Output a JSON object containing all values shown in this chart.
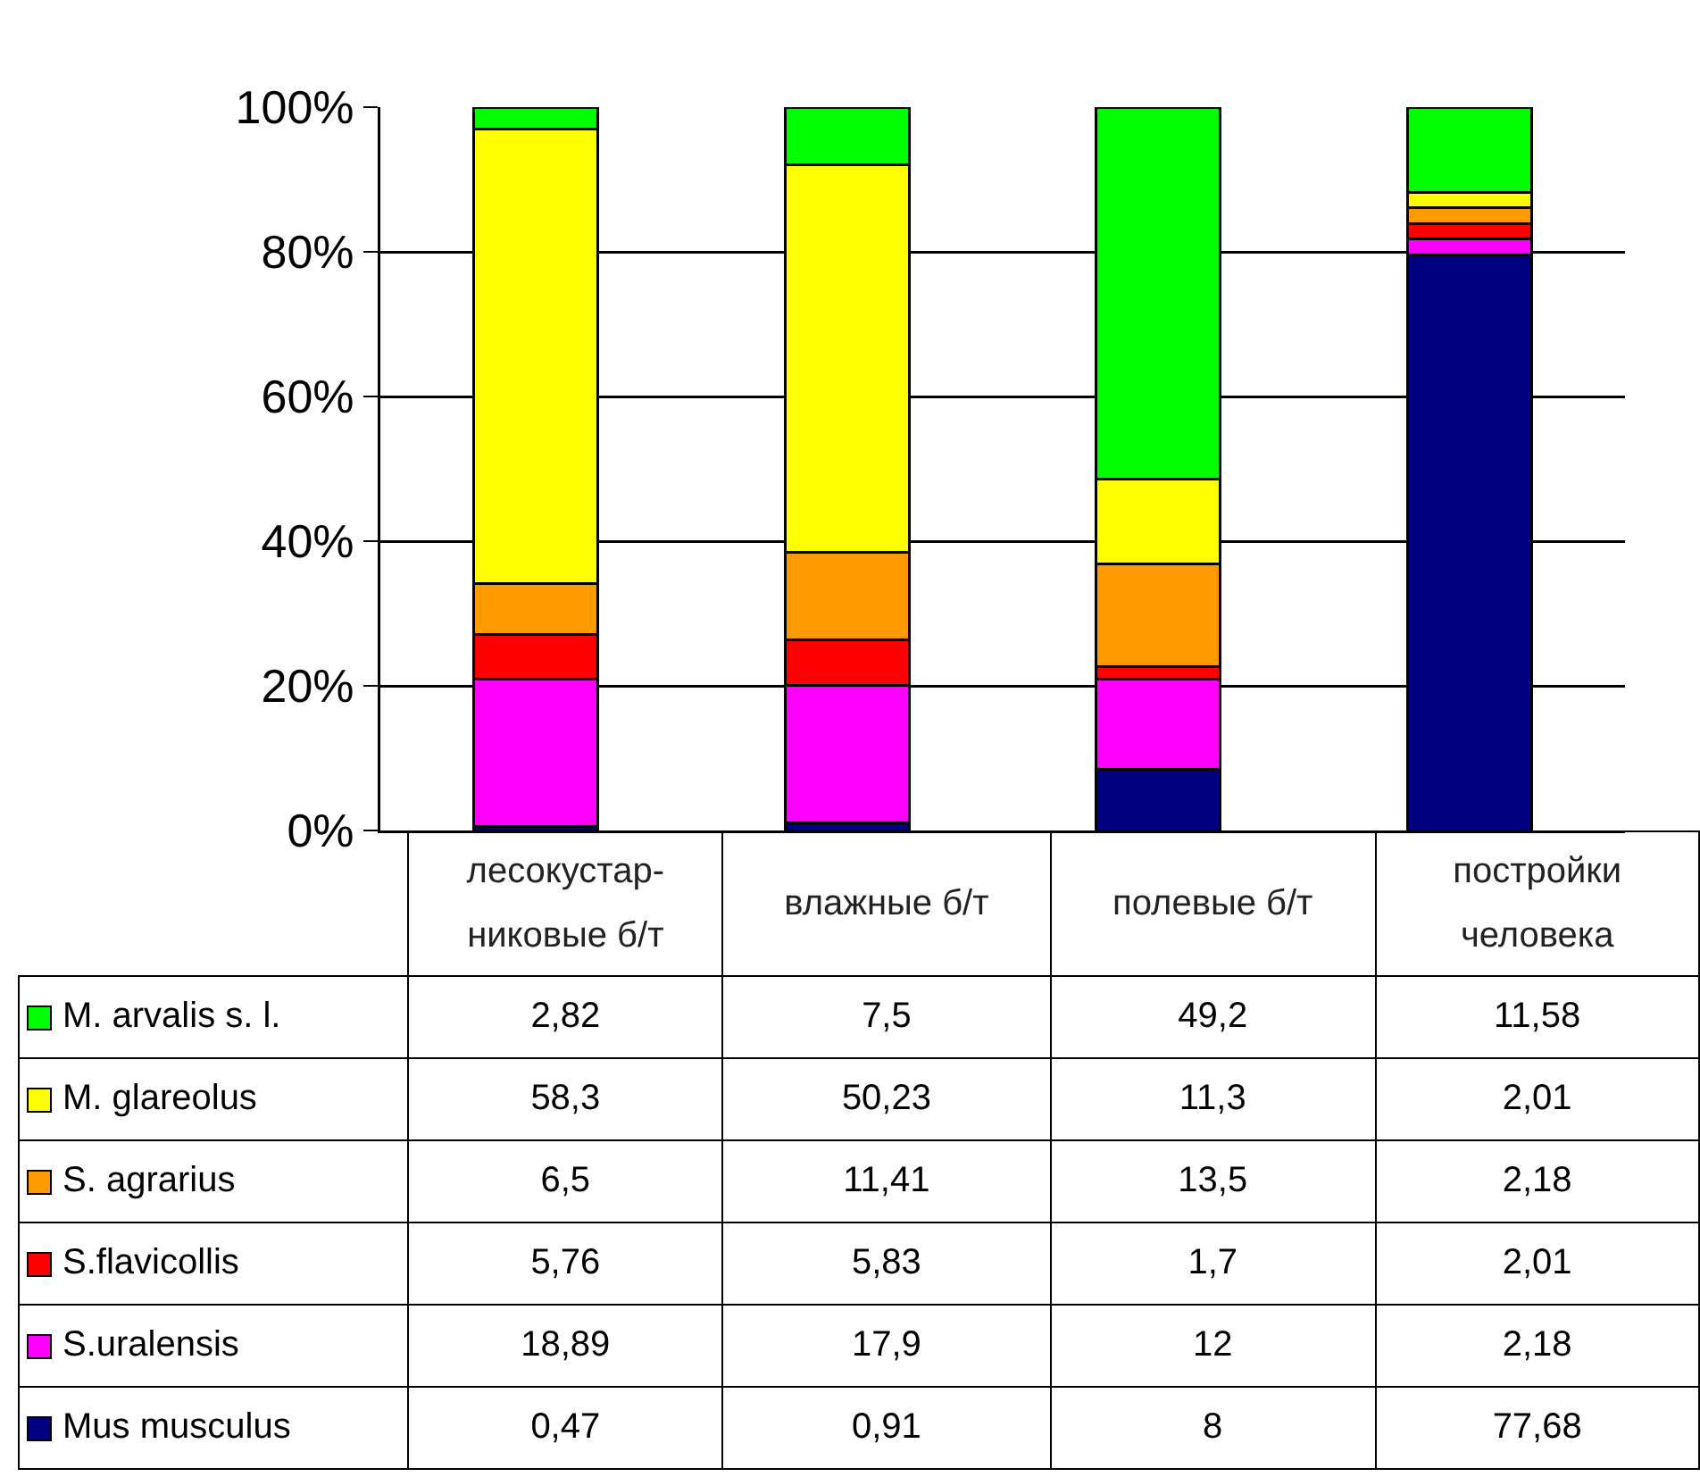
{
  "chart_data": {
    "type": "bar",
    "stacked": true,
    "categories": [
      "лесокустар-никовые б/т",
      "влажные б/т",
      "полевые б/т",
      "постройки человека"
    ],
    "series": [
      {
        "name": "Mus musculus",
        "color": "#000080",
        "values": [
          0.5,
          1.0,
          8.4,
          79.6
        ]
      },
      {
        "name": "S.uralensis",
        "color": "#ff00ff",
        "values": [
          20.4,
          19.1,
          12.5,
          2.2
        ]
      },
      {
        "name": "S.flavicollis",
        "color": "#ff0000",
        "values": [
          6.2,
          6.2,
          1.8,
          2.1
        ]
      },
      {
        "name": "S. agrarius",
        "color": "#ff9900",
        "values": [
          7.0,
          12.2,
          14.1,
          2.2
        ]
      },
      {
        "name": "M. glareolus",
        "color": "#ffff00",
        "values": [
          62.9,
          53.5,
          11.8,
          2.1
        ]
      },
      {
        "name": "M. arvalis s. l.",
        "color": "#00ff00",
        "values": [
          3.0,
          8.0,
          51.4,
          11.8
        ]
      }
    ],
    "annotations": [
      "2,82",
      "7,5",
      "49,2",
      "11,58",
      "58,3",
      "50,23",
      "11,3",
      "2,01",
      "6,5",
      "11,41",
      "13,5",
      "2,18",
      "5,76",
      "5,83",
      "1,7",
      "2,01",
      "18,89",
      "17,9",
      "12",
      "2,18",
      "0,47",
      "0,91",
      "8",
      "77,68"
    ],
    "ylim": [
      0,
      100
    ],
    "yticks": [
      {
        "value": 0,
        "label": "0%"
      },
      {
        "value": 20,
        "label": "20%"
      },
      {
        "value": 40,
        "label": "40%"
      },
      {
        "value": 60,
        "label": "60%"
      },
      {
        "value": 80,
        "label": "80%"
      },
      {
        "value": 100,
        "label": "100%"
      }
    ],
    "grid": "y",
    "legend": "bottom",
    "tick_labels": "y"
  }
}
